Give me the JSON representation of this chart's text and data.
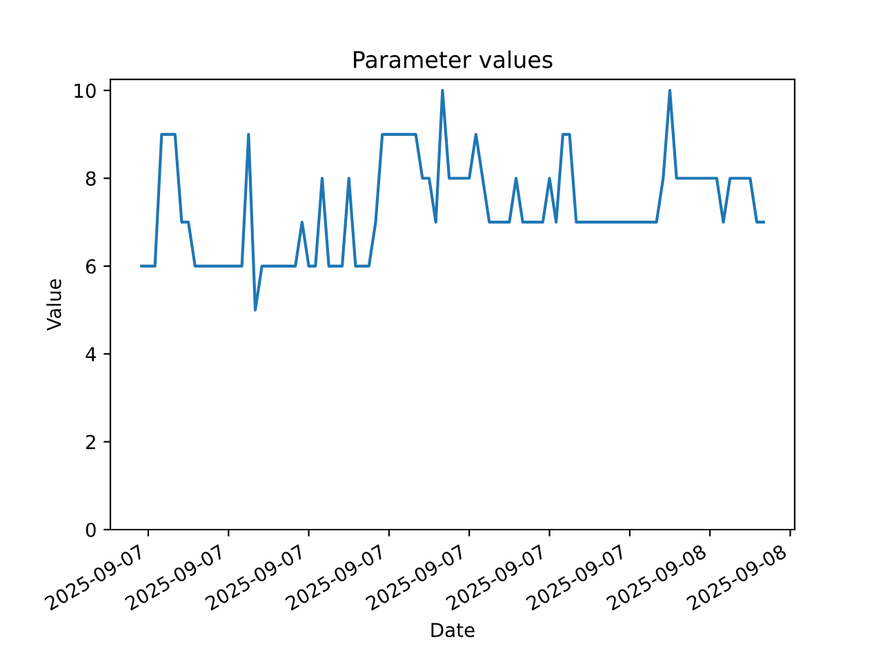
{
  "chart_data": {
    "type": "line",
    "title": "Parameter values",
    "xlabel": "Date",
    "ylabel": "Value",
    "x": [
      "2025-09-07T02:45",
      "2025-09-07T03:15",
      "2025-09-07T03:30",
      "2025-09-07T04:00",
      "2025-09-07T04:15",
      "2025-09-07T04:30",
      "2025-09-07T04:45",
      "2025-09-07T06:30",
      "2025-09-07T06:45",
      "2025-09-07T07:00",
      "2025-09-07T07:15",
      "2025-09-07T08:30",
      "2025-09-07T08:45",
      "2025-09-07T09:00",
      "2025-09-07T09:15",
      "2025-09-07T09:30",
      "2025-09-07T09:45",
      "2025-09-07T10:15",
      "2025-09-07T10:30",
      "2025-09-07T10:45",
      "2025-09-07T11:15",
      "2025-09-07T11:30",
      "2025-09-07T11:45",
      "2025-09-07T13:00",
      "2025-09-07T13:15",
      "2025-09-07T13:30",
      "2025-09-07T13:45",
      "2025-09-07T14:00",
      "2025-09-07T14:15",
      "2025-09-07T15:00",
      "2025-09-07T15:15",
      "2025-09-07T15:45",
      "2025-09-07T16:30",
      "2025-09-07T16:45",
      "2025-09-07T17:00",
      "2025-09-07T17:45",
      "2025-09-07T18:00",
      "2025-09-07T18:15",
      "2025-09-07T18:30",
      "2025-09-07T18:45",
      "2025-09-07T19:00",
      "2025-09-07T22:00",
      "2025-09-07T22:15",
      "2025-09-07T22:30",
      "2025-09-07T22:45",
      "2025-09-08T00:15",
      "2025-09-08T00:30",
      "2025-09-08T00:45",
      "2025-09-08T01:30",
      "2025-09-08T01:45",
      "2025-09-08T02:00"
    ],
    "series": [
      {
        "color": "#1f77b4",
        "values": [
          6,
          6,
          9,
          9,
          7,
          7,
          6,
          6,
          9,
          5,
          6,
          6,
          7,
          6,
          6,
          8,
          6,
          6,
          8,
          6,
          6,
          7,
          9,
          9,
          8,
          8,
          7,
          10,
          8,
          8,
          9,
          7,
          7,
          8,
          7,
          7,
          8,
          7,
          9,
          9,
          7,
          7,
          8,
          10,
          8,
          8,
          7,
          8,
          8,
          7,
          7
        ]
      }
    ],
    "xlim": [
      "2025-09-07T01:35",
      "2025-09-08T03:10"
    ],
    "xticks": [
      {
        "value": "2025-09-07T03:00",
        "label": "2025-09-07"
      },
      {
        "value": "2025-09-07T06:00",
        "label": "2025-09-07"
      },
      {
        "value": "2025-09-07T09:00",
        "label": "2025-09-07"
      },
      {
        "value": "2025-09-07T12:00",
        "label": "2025-09-07"
      },
      {
        "value": "2025-09-07T15:00",
        "label": "2025-09-07"
      },
      {
        "value": "2025-09-07T18:00",
        "label": "2025-09-07"
      },
      {
        "value": "2025-09-07T21:00",
        "label": "2025-09-07"
      },
      {
        "value": "2025-09-08T00:00",
        "label": "2025-09-08"
      },
      {
        "value": "2025-09-08T03:00",
        "label": "2025-09-08"
      }
    ],
    "ylim": [
      0,
      10.25
    ],
    "yticks": [
      0,
      2,
      4,
      6,
      8,
      10
    ],
    "grid": false,
    "marker": "none",
    "line_style": "solid"
  }
}
